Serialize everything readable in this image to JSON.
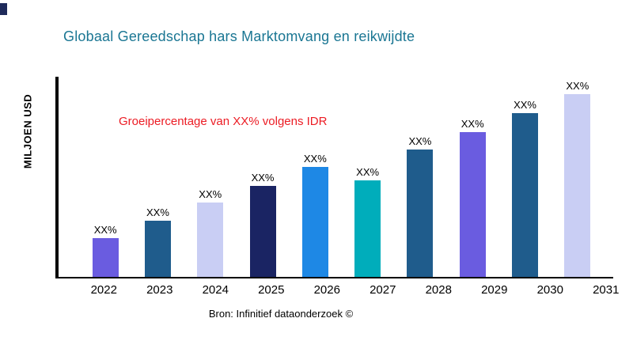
{
  "chart_data": {
    "type": "bar",
    "title": "Globaal Gereedschap hars Marktomvang en reikwijdte",
    "title_color": "#1a7693",
    "ylabel": "MILJOEN USD",
    "xlabel": "",
    "annotation": "Groeipercentage van XX% volgens IDR",
    "annotation_color": "#ec1c24",
    "source": "Bron: Infinitief dataonderzoek ©",
    "categories": [
      "2022",
      "2023",
      "2024",
      "2025",
      "2026",
      "2027",
      "2028",
      "2029",
      "2030",
      "2031"
    ],
    "series": [
      {
        "name": "Marktomvang",
        "value_labels": [
          "XX%",
          "XX%",
          "XX%",
          "XX%",
          "XX%",
          "XX%",
          "XX%",
          "XX%",
          "XX%",
          "XX%"
        ],
        "relative_heights_pct": [
          19.2,
          28.2,
          37.3,
          45.5,
          54.9,
          48.2,
          63.5,
          72.5,
          82.0,
          91.4
        ]
      }
    ],
    "bar_colors": [
      "#6a5ce0",
      "#1f5c8c",
      "#c9cef4",
      "#1a2463",
      "#1e88e5",
      "#00adbb",
      "#1f5c8c",
      "#6a5ce0",
      "#1f5c8c",
      "#c9cef4"
    ],
    "axis_color": "#000000",
    "grid": false,
    "legend": false
  }
}
